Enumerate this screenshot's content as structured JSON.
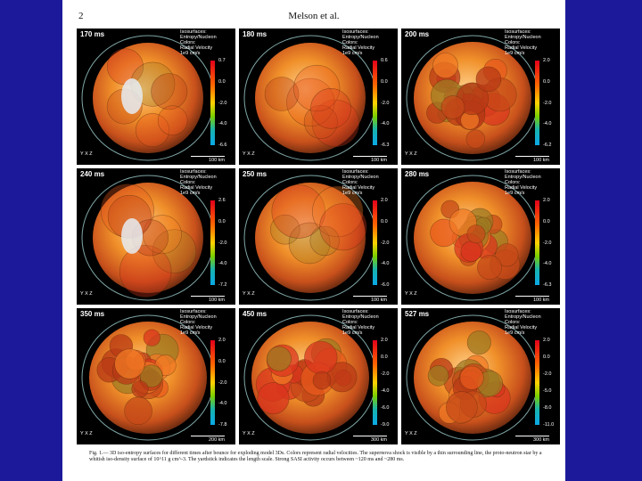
{
  "header": {
    "page_number": "2",
    "authors": "Melson et al."
  },
  "legend": {
    "line1": "Isosurfaces:",
    "line2": "Entropy/Nucleon",
    "line3": "Colors:",
    "line4": "Radial Velocity",
    "line5": "1e9 cm/s"
  },
  "axis_labels": {
    "a": "Y",
    "b": "X",
    "c": "Z"
  },
  "colormap": [
    "#e4001a",
    "#ff6a00",
    "#ffd200",
    "#7ad000",
    "#17b3b0",
    "#0aa8e8"
  ],
  "panels": [
    {
      "time": "170 ms",
      "ticks": [
        "0.7",
        "0.0",
        "-2.0",
        "-4.0",
        "-6.6"
      ],
      "scale": "100 km",
      "structure": "smooth"
    },
    {
      "time": "180 ms",
      "ticks": [
        "0.6",
        "0.0",
        "-2.0",
        "-4.0",
        "-6.3"
      ],
      "scale": "100 km",
      "structure": "smooth"
    },
    {
      "time": "200 ms",
      "ticks": [
        "2.0",
        "0.0",
        "-2.0",
        "-4.0",
        "-6.2"
      ],
      "scale": "100 km",
      "structure": "bubbly"
    },
    {
      "time": "240 ms",
      "ticks": [
        "2.6",
        "0.0",
        "-2.0",
        "-4.0",
        "-7.2"
      ],
      "scale": "100 km",
      "structure": "smooth"
    },
    {
      "time": "250 ms",
      "ticks": [
        "2.0",
        "0.0",
        "-2.0",
        "-4.0",
        "-6.0"
      ],
      "scale": "100 km",
      "structure": "smooth"
    },
    {
      "time": "280 ms",
      "ticks": [
        "2.0",
        "0.0",
        "-2.0",
        "-4.0",
        "-6.3"
      ],
      "scale": "100 km",
      "structure": "bubbly"
    },
    {
      "time": "350 ms",
      "ticks": [
        "2.0",
        "0.0",
        "-2.0",
        "-4.0",
        "-7.8"
      ],
      "scale": "200 km",
      "structure": "bubbly"
    },
    {
      "time": "450 ms",
      "ticks": [
        "2.0",
        "0.0",
        "-2.0",
        "-4.0",
        "-6.0",
        "-9.0"
      ],
      "scale": "300 km",
      "structure": "bubbly"
    },
    {
      "time": "527 ms",
      "ticks": [
        "2.0",
        "0.0",
        "-2.0",
        "-5.0",
        "-8.0",
        "-11.0"
      ],
      "scale": "300 km",
      "structure": "bubbly"
    }
  ],
  "caption": "Fig. 1.— 3D iso-entropy surfaces for different times after bounce for exploding model 3Ds. Colors represent radial velocities. The supernova shock is visible by a thin surrounding line, the proto-neutron star by a whitish iso-density surface of 10^11 g cm^-3. The yardstick indicates the length scale. Strong SASI activity occurs between ~120 ms and ~280 ms."
}
